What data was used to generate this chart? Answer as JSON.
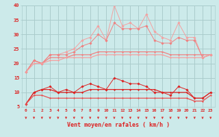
{
  "x": [
    0,
    1,
    2,
    3,
    4,
    5,
    6,
    7,
    8,
    9,
    10,
    11,
    12,
    13,
    14,
    15,
    16,
    17,
    18,
    19,
    20,
    21,
    22,
    23
  ],
  "line_gust_top": [
    17,
    21,
    20,
    23,
    23,
    24,
    25,
    28,
    29,
    33,
    28,
    40,
    33,
    34,
    32,
    37,
    31,
    29,
    28,
    34,
    29,
    29,
    22,
    23
  ],
  "line_gust_upper": [
    17,
    21,
    20,
    23,
    23,
    23,
    24,
    26,
    27,
    30,
    28,
    34,
    32,
    32,
    32,
    33,
    28,
    27,
    27,
    29,
    28,
    28,
    22,
    23
  ],
  "line_avg_upper": [
    17,
    21,
    20,
    22,
    22,
    22,
    23,
    23,
    23,
    24,
    24,
    24,
    24,
    24,
    24,
    24,
    24,
    24,
    23,
    23,
    23,
    23,
    23,
    23
  ],
  "line_avg_lower": [
    17,
    20,
    20,
    21,
    21,
    22,
    22,
    22,
    22,
    23,
    23,
    23,
    23,
    23,
    23,
    23,
    23,
    23,
    22,
    22,
    22,
    22,
    22,
    23
  ],
  "line_wind_jagged": [
    6,
    10,
    11,
    12,
    10,
    11,
    10,
    12,
    13,
    12,
    11,
    15,
    14,
    13,
    13,
    12,
    10,
    10,
    9,
    12,
    11,
    8,
    8,
    10
  ],
  "line_wind_lower1": [
    6,
    10,
    11,
    11,
    10,
    10,
    10,
    10,
    11,
    11,
    11,
    11,
    11,
    11,
    11,
    11,
    11,
    10,
    10,
    10,
    10,
    8,
    8,
    10
  ],
  "line_wind_lower2": [
    6,
    9,
    9,
    8,
    8,
    8,
    8,
    8,
    8,
    8,
    8,
    8,
    8,
    8,
    8,
    8,
    8,
    8,
    8,
    8,
    8,
    7,
    7,
    9
  ],
  "color_gust_light": "#f4a0a0",
  "color_gust_medium": "#f08080",
  "color_wind_dark": "#dd2222",
  "color_wind_medium": "#e85050",
  "bg_color": "#cceaea",
  "grid_color": "#aacccc",
  "xlabel": "Vent moyen/en rafales ( km/h )",
  "ylim": [
    5,
    40
  ],
  "xlim": [
    -0.5,
    23.5
  ],
  "yticks": [
    5,
    10,
    15,
    20,
    25,
    30,
    35,
    40
  ],
  "xticks": [
    0,
    1,
    2,
    3,
    4,
    5,
    6,
    7,
    8,
    9,
    10,
    11,
    12,
    13,
    14,
    15,
    16,
    17,
    18,
    19,
    20,
    21,
    22,
    23
  ]
}
